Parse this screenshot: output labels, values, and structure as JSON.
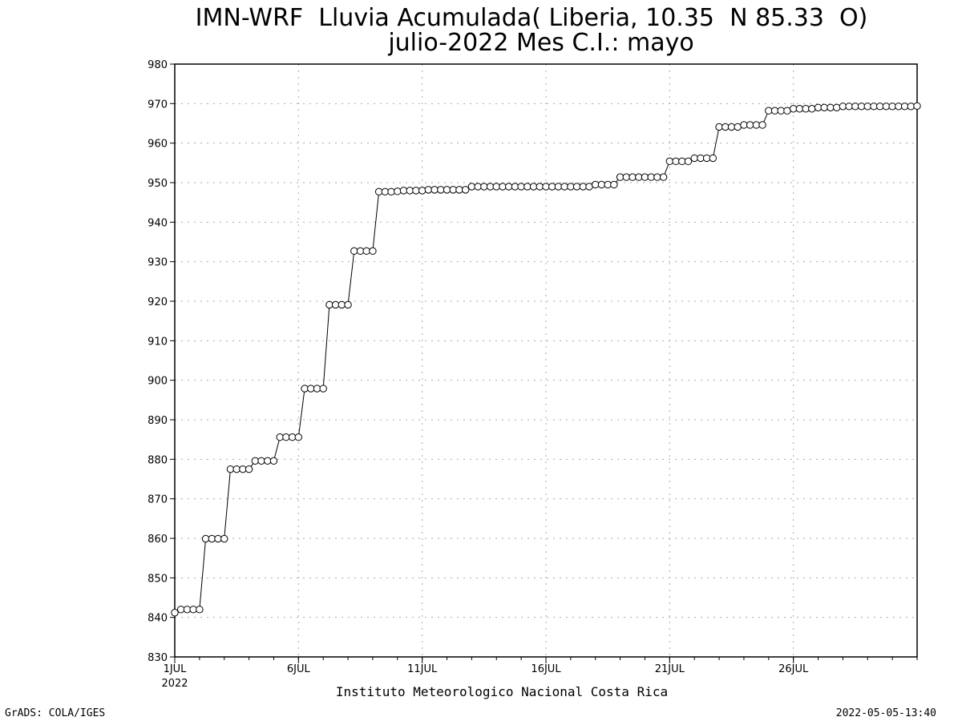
{
  "chart_data": {
    "type": "line",
    "title": "IMN-WRF  Lluvia Acumulada( Liberia, 10.35  N 85.33  O)",
    "subtitle": "julio-2022 Mes C.I.: mayo",
    "xlabel": "Instituto Meteorologico Nacional Costa Rica",
    "ylabel": "",
    "ylim": [
      830,
      980
    ],
    "yticks": [
      830,
      840,
      850,
      860,
      870,
      880,
      890,
      900,
      910,
      920,
      930,
      940,
      950,
      960,
      970,
      980
    ],
    "xlim": [
      "2022-07-01 00:00",
      "2022-07-31 00:00"
    ],
    "xticks": [
      {
        "label": "1JUL",
        "sublabel": "2022",
        "date": "2022-07-01"
      },
      {
        "label": "6JUL",
        "sublabel": "",
        "date": "2022-07-06"
      },
      {
        "label": "11JUL",
        "sublabel": "",
        "date": "2022-07-11"
      },
      {
        "label": "16JUL",
        "sublabel": "",
        "date": "2022-07-16"
      },
      {
        "label": "21JUL",
        "sublabel": "",
        "date": "2022-07-21"
      },
      {
        "label": "26JUL",
        "sublabel": "",
        "date": "2022-07-26"
      }
    ],
    "grid": true,
    "marker": "open-circle",
    "series": [
      {
        "time_step_hours": 6,
        "start": "2022-07-01 00:00",
        "values": [
          841.2,
          842.0,
          842.0,
          842.0,
          842.0,
          859.9,
          859.9,
          859.9,
          859.9,
          877.5,
          877.5,
          877.5,
          877.5,
          879.6,
          879.6,
          879.6,
          879.6,
          885.6,
          885.6,
          885.6,
          885.6,
          897.9,
          897.9,
          897.9,
          897.9,
          919.1,
          919.1,
          919.1,
          919.1,
          932.7,
          932.7,
          932.7,
          932.7,
          947.7,
          947.7,
          947.7,
          947.8,
          948.0,
          948.0,
          948.0,
          948.0,
          948.2,
          948.2,
          948.2,
          948.2,
          948.2,
          948.2,
          948.2,
          949.0,
          949.0,
          949.0,
          949.0,
          949.0,
          949.0,
          949.0,
          949.0,
          949.0,
          949.0,
          949.0,
          949.0,
          949.0,
          949.0,
          949.0,
          949.0,
          949.0,
          949.0,
          949.0,
          949.0,
          949.5,
          949.5,
          949.5,
          949.5,
          951.4,
          951.4,
          951.4,
          951.4,
          951.4,
          951.4,
          951.4,
          951.4,
          955.4,
          955.4,
          955.4,
          955.4,
          956.2,
          956.2,
          956.2,
          956.2,
          964.1,
          964.1,
          964.1,
          964.1,
          964.6,
          964.6,
          964.6,
          964.6,
          968.2,
          968.2,
          968.2,
          968.2,
          968.7,
          968.7,
          968.7,
          968.7,
          969.0,
          969.0,
          969.0,
          969.0,
          969.3,
          969.3,
          969.3,
          969.3,
          969.3,
          969.3,
          969.3,
          969.3,
          969.3,
          969.3,
          969.3,
          969.3,
          969.4
        ]
      }
    ]
  },
  "footer": {
    "left": "GrADS: COLA/IGES",
    "right": "2022-05-05-13:40"
  }
}
